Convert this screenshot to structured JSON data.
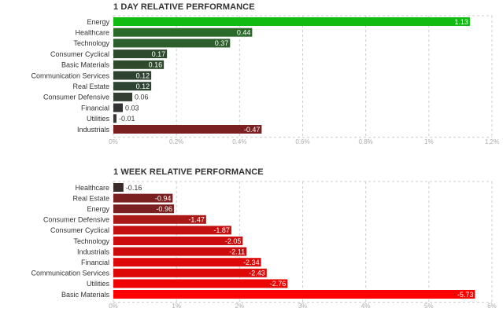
{
  "chart_data": [
    {
      "type": "bar",
      "orientation": "horizontal",
      "title": "1 DAY RELATIVE PERFORMANCE",
      "categories": [
        "Energy",
        "Healthcare",
        "Technology",
        "Consumer Cyclical",
        "Basic Materials",
        "Communication Services",
        "Real Estate",
        "Consumer Defensive",
        "Financial",
        "Utilities",
        "Industrials"
      ],
      "values": [
        1.13,
        0.44,
        0.37,
        0.17,
        0.16,
        0.12,
        0.12,
        0.06,
        0.03,
        -0.01,
        -0.47
      ],
      "value_labels": [
        "1.13",
        "0.44",
        "0.37",
        "0.17",
        "0.16",
        "0.12",
        "0.12",
        "0.06",
        "0.03",
        "-0.01",
        "-0.47"
      ],
      "bar_colors": [
        "#11bb11",
        "#2a6b2a",
        "#2d5f2d",
        "#2d4a2d",
        "#2d4a2d",
        "#2d4230",
        "#2d4230",
        "#333f33",
        "#333333",
        "#3a3333",
        "#7a2020"
      ],
      "xlim": [
        0,
        1.2
      ],
      "x_ticks": [
        0,
        0.2,
        0.4,
        0.6,
        0.8,
        1.0,
        1.2
      ],
      "x_tick_labels": [
        "0%",
        "0.2%",
        "0.4%",
        "0.6%",
        "0.8%",
        "1%",
        "1.2%"
      ],
      "grid": true
    },
    {
      "type": "bar",
      "orientation": "horizontal",
      "title": "1 WEEK RELATIVE PERFORMANCE",
      "categories": [
        "Healthcare",
        "Real Estate",
        "Energy",
        "Consumer Defensive",
        "Consumer Cyclical",
        "Technology",
        "Industrials",
        "Financial",
        "Communication Services",
        "Utilities",
        "Basic Materials"
      ],
      "values": [
        -0.16,
        -0.94,
        -0.96,
        -1.47,
        -1.87,
        -2.05,
        -2.11,
        -2.34,
        -2.43,
        -2.76,
        -5.73
      ],
      "value_labels": [
        "-0.16",
        "-0.94",
        "-0.96",
        "-1.47",
        "-1.87",
        "-2.05",
        "-2.11",
        "-2.34",
        "-2.43",
        "-2.76",
        "-5.73"
      ],
      "bar_colors": [
        "#3a2a2a",
        "#7a2020",
        "#7a2020",
        "#aa1818",
        "#c41010",
        "#cc0c0c",
        "#cc0c0c",
        "#dd0808",
        "#dd0808",
        "#ee0404",
        "#ff0000"
      ],
      "xlim": [
        0,
        6
      ],
      "x_ticks": [
        0,
        1,
        2,
        3,
        4,
        5,
        6
      ],
      "x_tick_labels": [
        "0%",
        "1%",
        "2%",
        "3%",
        "4%",
        "5%",
        "6%"
      ],
      "grid": true
    }
  ]
}
